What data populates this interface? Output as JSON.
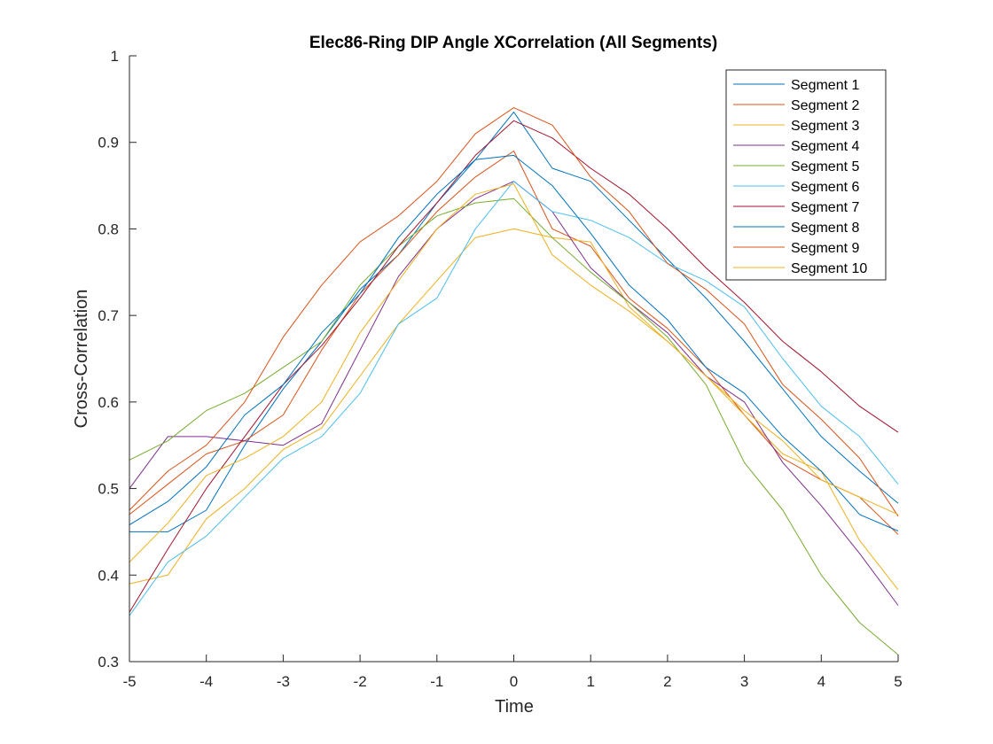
{
  "chart_data": {
    "type": "line",
    "title": "Elec86-Ring DIP Angle XCorrelation (All Segments)",
    "xlabel": "Time",
    "ylabel": "Cross-Correlation",
    "xlim": [
      -5,
      5
    ],
    "ylim": [
      0.3,
      1
    ],
    "x_ticks": [
      -5,
      -4,
      -3,
      -2,
      -1,
      0,
      1,
      2,
      3,
      4,
      5
    ],
    "y_ticks": [
      0.3,
      0.4,
      0.5,
      0.6,
      0.7,
      0.8,
      0.9,
      1
    ],
    "grid": false,
    "legend_position": "top-right",
    "x": [
      -5,
      -4.5,
      -4,
      -3.5,
      -3,
      -2.5,
      -2,
      -1.5,
      -1,
      -0.5,
      0,
      0.5,
      1,
      1.5,
      2,
      2.5,
      3,
      3.5,
      4,
      4.5,
      5
    ],
    "series": [
      {
        "name": "Segment 1",
        "color": "#0072BD",
        "values": [
          0.45,
          0.45,
          0.475,
          0.55,
          0.615,
          0.67,
          0.73,
          0.77,
          0.83,
          0.88,
          0.935,
          0.87,
          0.855,
          0.81,
          0.765,
          0.72,
          0.67,
          0.615,
          0.56,
          0.52,
          0.483
        ]
      },
      {
        "name": "Segment 2",
        "color": "#D95319",
        "values": [
          0.47,
          0.505,
          0.54,
          0.555,
          0.585,
          0.66,
          0.725,
          0.77,
          0.82,
          0.86,
          0.89,
          0.8,
          0.78,
          0.72,
          0.685,
          0.64,
          0.585,
          0.535,
          0.51,
          0.49,
          0.447
        ]
      },
      {
        "name": "Segment 3",
        "color": "#EDB120",
        "values": [
          0.39,
          0.4,
          0.465,
          0.5,
          0.545,
          0.57,
          0.63,
          0.69,
          0.74,
          0.79,
          0.8,
          0.79,
          0.785,
          0.71,
          0.67,
          0.63,
          0.585,
          0.54,
          0.52,
          0.44,
          0.383
        ]
      },
      {
        "name": "Segment 4",
        "color": "#7E2F8E",
        "values": [
          0.5,
          0.56,
          0.56,
          0.555,
          0.55,
          0.575,
          0.66,
          0.745,
          0.8,
          0.835,
          0.855,
          0.82,
          0.755,
          0.715,
          0.68,
          0.63,
          0.6,
          0.53,
          0.48,
          0.425,
          0.365
        ]
      },
      {
        "name": "Segment 5",
        "color": "#77AC30",
        "values": [
          0.533,
          0.555,
          0.59,
          0.61,
          0.64,
          0.67,
          0.735,
          0.78,
          0.815,
          0.83,
          0.835,
          0.79,
          0.75,
          0.715,
          0.675,
          0.62,
          0.53,
          0.475,
          0.4,
          0.345,
          0.308
        ]
      },
      {
        "name": "Segment 6",
        "color": "#4DBEEE",
        "values": [
          0.353,
          0.415,
          0.445,
          0.49,
          0.535,
          0.56,
          0.61,
          0.69,
          0.72,
          0.8,
          0.855,
          0.82,
          0.81,
          0.79,
          0.76,
          0.74,
          0.71,
          0.65,
          0.595,
          0.56,
          0.505
        ]
      },
      {
        "name": "Segment 7",
        "color": "#A2142F",
        "values": [
          0.357,
          0.43,
          0.5,
          0.56,
          0.62,
          0.665,
          0.72,
          0.78,
          0.83,
          0.885,
          0.925,
          0.905,
          0.87,
          0.84,
          0.8,
          0.755,
          0.715,
          0.67,
          0.635,
          0.595,
          0.565
        ]
      },
      {
        "name": "Segment 8",
        "color": "#0072BD",
        "values": [
          0.458,
          0.485,
          0.525,
          0.585,
          0.62,
          0.68,
          0.725,
          0.79,
          0.84,
          0.88,
          0.885,
          0.85,
          0.795,
          0.735,
          0.695,
          0.64,
          0.61,
          0.56,
          0.52,
          0.47,
          0.451
        ]
      },
      {
        "name": "Segment 9",
        "color": "#D95319",
        "values": [
          0.475,
          0.52,
          0.55,
          0.6,
          0.675,
          0.735,
          0.785,
          0.815,
          0.855,
          0.91,
          0.94,
          0.92,
          0.86,
          0.82,
          0.76,
          0.73,
          0.69,
          0.62,
          0.58,
          0.535,
          0.468
        ]
      },
      {
        "name": "Segment 10",
        "color": "#EDB120",
        "values": [
          0.415,
          0.46,
          0.515,
          0.535,
          0.56,
          0.6,
          0.68,
          0.74,
          0.8,
          0.84,
          0.852,
          0.77,
          0.735,
          0.705,
          0.67,
          0.63,
          0.59,
          0.555,
          0.51,
          0.49,
          0.47
        ]
      }
    ]
  }
}
